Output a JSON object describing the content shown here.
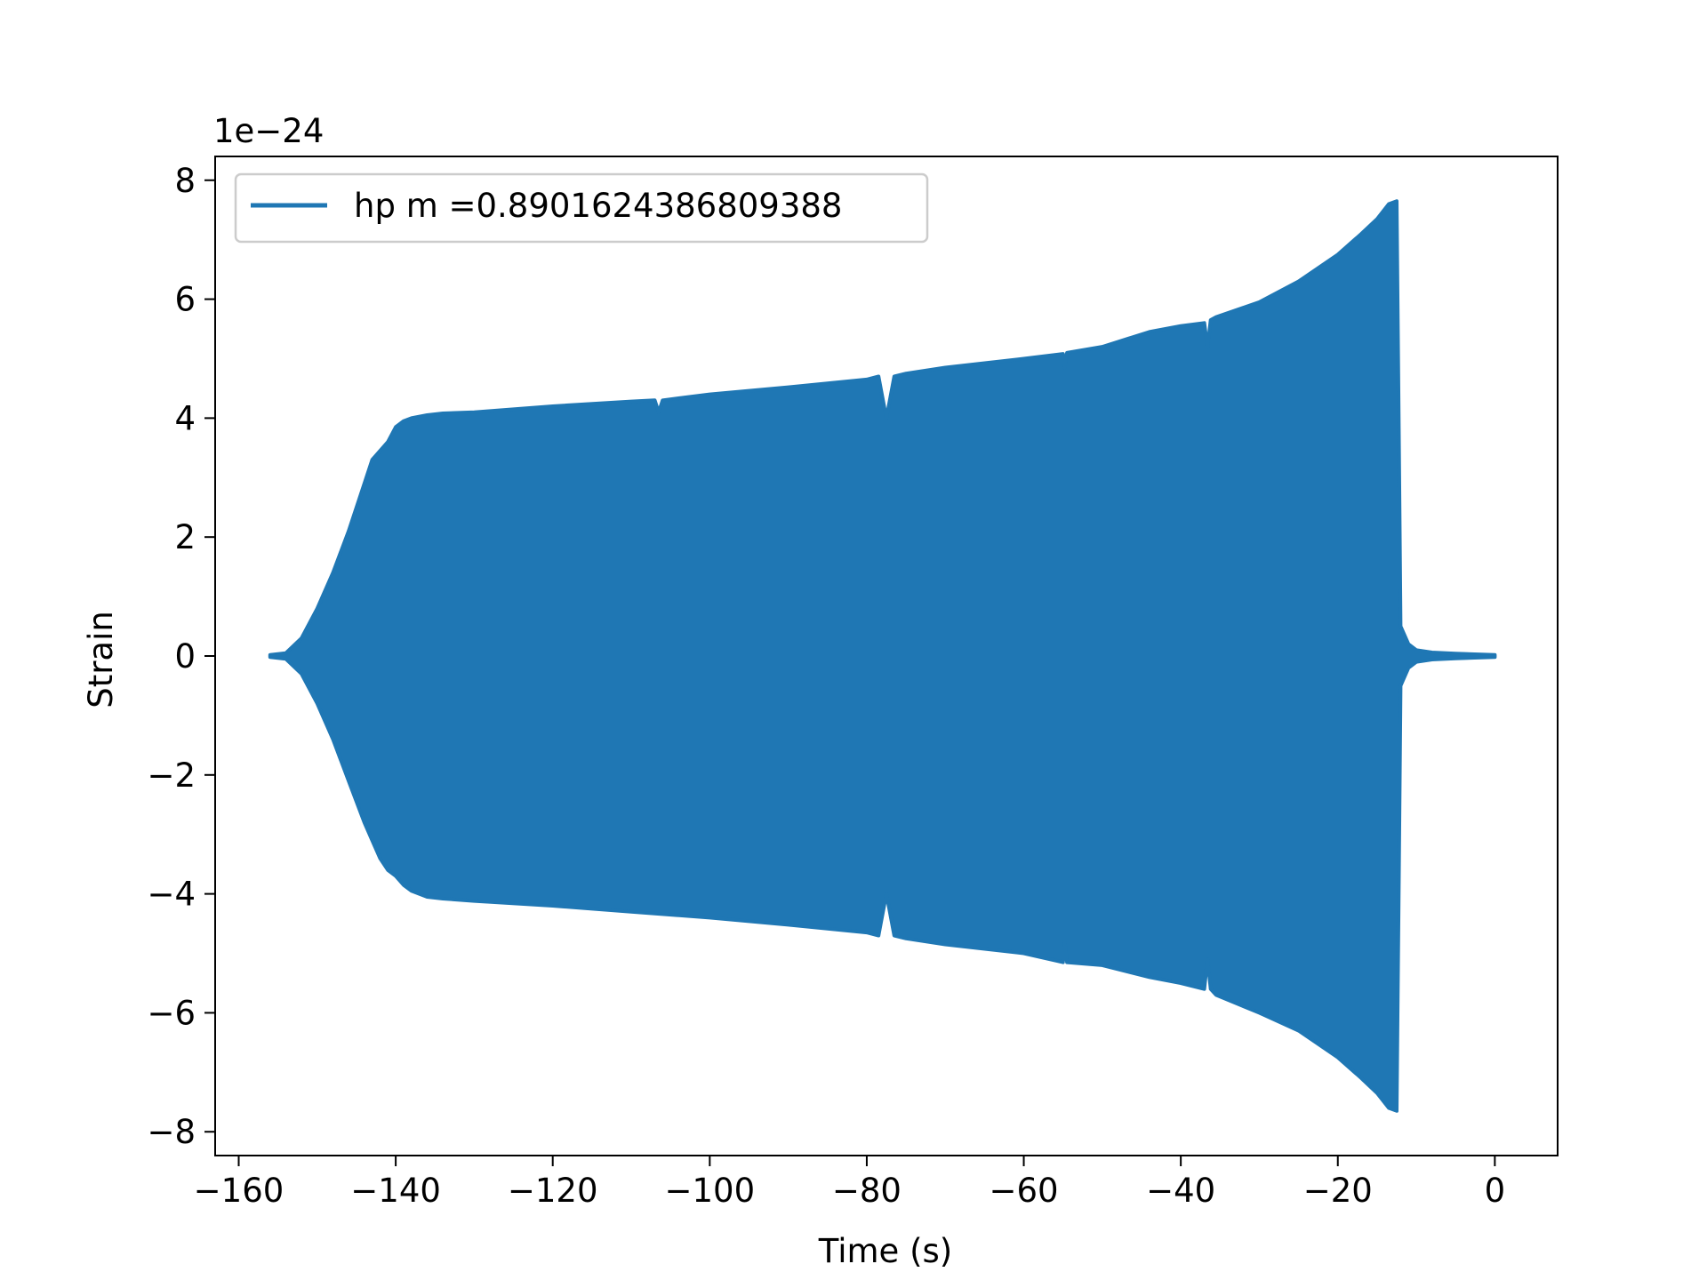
{
  "chart_data": {
    "type": "line",
    "title": "",
    "xlabel": "Time (s)",
    "ylabel": "Strain",
    "y_offset_label": "1e−24",
    "xlim": [
      -163,
      8
    ],
    "ylim": [
      -8.4,
      8.4
    ],
    "x_ticks": [
      -160,
      -140,
      -120,
      -100,
      -80,
      -60,
      -40,
      -20,
      0
    ],
    "x_tick_labels": [
      "−160",
      "−140",
      "−120",
      "−100",
      "−80",
      "−60",
      "−40",
      "−20",
      "0"
    ],
    "y_ticks": [
      -8,
      -6,
      -4,
      -2,
      0,
      2,
      4,
      6,
      8
    ],
    "y_tick_labels": [
      "−8",
      "−6",
      "−4",
      "−2",
      "0",
      "2",
      "4",
      "6",
      "8"
    ],
    "grid": false,
    "legend_position": "top-left",
    "series": [
      {
        "name": "hp m =0.8901624386809388",
        "color": "#1f77b4",
        "render": "dense-oscillation-envelope",
        "upper_envelope": {
          "x": [
            -156,
            -154,
            -152,
            -150,
            -148,
            -146,
            -144,
            -143,
            -142,
            -141,
            -140,
            -139,
            -138,
            -136,
            -134,
            -130,
            -120,
            -110,
            -107,
            -106.5,
            -106,
            -100,
            -90,
            -80,
            -78.5,
            -77.5,
            -76.5,
            -75,
            -70,
            -60,
            -55,
            -54.8,
            -54.5,
            -50,
            -44,
            -40,
            -37,
            -36.6,
            -36.2,
            -35.5,
            -30,
            -25,
            -20,
            -17,
            -15,
            -13.5,
            -12.5,
            -12.2,
            -12,
            -11.5,
            -11,
            -10,
            -8,
            -5,
            0
          ],
          "y": [
            0.02,
            0.05,
            0.3,
            0.8,
            1.4,
            2.1,
            2.9,
            3.3,
            3.45,
            3.6,
            3.85,
            3.95,
            4.0,
            4.05,
            4.08,
            4.1,
            4.2,
            4.28,
            4.3,
            4.1,
            4.3,
            4.4,
            4.52,
            4.65,
            4.7,
            4.0,
            4.7,
            4.75,
            4.85,
            5.0,
            5.08,
            4.85,
            5.1,
            5.2,
            5.45,
            5.55,
            5.6,
            5.2,
            5.65,
            5.7,
            5.95,
            6.3,
            6.75,
            7.1,
            7.35,
            7.6,
            7.65,
            3.5,
            0.5,
            0.35,
            0.2,
            0.1,
            0.06,
            0.04,
            0.02
          ]
        },
        "lower_envelope": {
          "x": [
            -156,
            -154,
            -152,
            -150,
            -148,
            -146,
            -144,
            -143,
            -142,
            -141,
            -140,
            -139,
            -138,
            -136,
            -134,
            -130,
            -120,
            -110,
            -100,
            -90,
            -80,
            -78.5,
            -77.5,
            -76.5,
            -75,
            -70,
            -60,
            -55,
            -54.8,
            -54.5,
            -50,
            -44,
            -40,
            -37,
            -36.6,
            -36.2,
            -35.5,
            -30,
            -25,
            -20,
            -17,
            -15,
            -13.5,
            -12.5,
            -12.2,
            -12,
            -11.5,
            -11,
            -10,
            -8,
            -5,
            0
          ],
          "y": [
            -0.02,
            -0.05,
            -0.3,
            -0.8,
            -1.4,
            -2.1,
            -2.8,
            -3.1,
            -3.4,
            -3.6,
            -3.7,
            -3.85,
            -3.95,
            -4.05,
            -4.08,
            -4.12,
            -4.2,
            -4.3,
            -4.4,
            -4.52,
            -4.65,
            -4.7,
            -4.0,
            -4.7,
            -4.75,
            -4.85,
            -5.0,
            -5.15,
            -4.8,
            -5.15,
            -5.2,
            -5.4,
            -5.5,
            -5.6,
            -5.1,
            -5.6,
            -5.7,
            -6.0,
            -6.3,
            -6.75,
            -7.1,
            -7.35,
            -7.6,
            -7.65,
            -3.5,
            -0.5,
            -0.35,
            -0.2,
            -0.1,
            -0.06,
            -0.04,
            -0.02
          ]
        }
      }
    ]
  }
}
